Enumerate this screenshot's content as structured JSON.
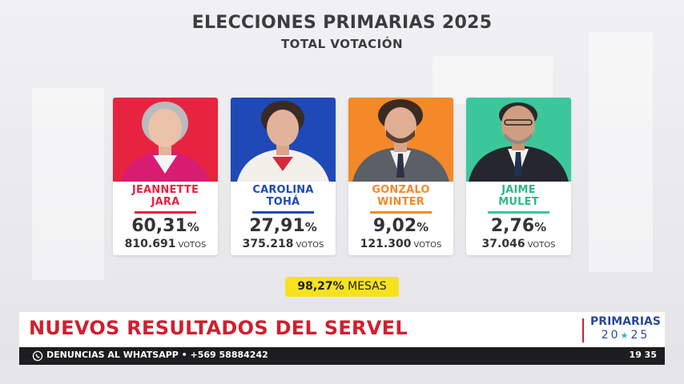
{
  "header": {
    "title": "ELECCIONES PRIMARIAS 2025",
    "subtitle": "TOTAL VOTACIÓN"
  },
  "candidates": [
    {
      "first": "JEANNETTE",
      "last": "JARA",
      "pct": "60,31",
      "pct_sign": "%",
      "votes": "810.691",
      "votes_label": "VOTOS",
      "color": "#e8233f",
      "name_color": "#e8233f"
    },
    {
      "first": "CAROLINA",
      "last": "TOHÁ",
      "pct": "27,91",
      "pct_sign": "%",
      "votes": "375.218",
      "votes_label": "VOTOS",
      "color": "#1f49b6",
      "name_color": "#1f49b6"
    },
    {
      "first": "GONZALO",
      "last": "WINTER",
      "pct": "9,02",
      "pct_sign": "%",
      "votes": "121.300",
      "votes_label": "VOTOS",
      "color": "#f4892a",
      "name_color": "#f4892a"
    },
    {
      "first": "JAIME",
      "last": "MULET",
      "pct": "2,76",
      "pct_sign": "%",
      "votes": "37.046",
      "votes_label": "VOTOS",
      "color": "#3cc79a",
      "name_color": "#2fb88b"
    }
  ],
  "mesas": {
    "value": "98,27%",
    "label": "MESAS"
  },
  "banner": {
    "headline": "NUEVOS RESULTADOS DEL SERVEL",
    "logo_top": "PRIMARIAS",
    "logo_year_a": "20",
    "logo_year_b": "25"
  },
  "ticker": {
    "text": "DENUNCIAS AL WHATSAPP • +569 58884242",
    "clock": "19 35",
    "icon": "whatsapp-icon"
  }
}
